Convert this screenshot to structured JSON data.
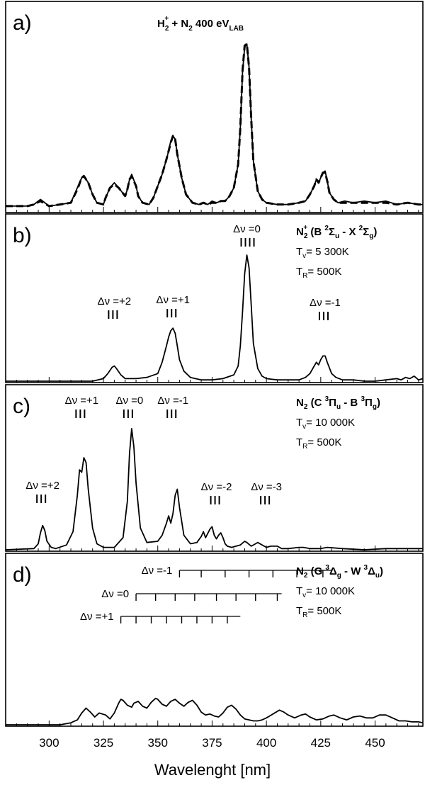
{
  "chart_data": {
    "type": "line",
    "xlabel": "Wavelenght [nm]",
    "xlim": [
      280,
      472
    ],
    "x_ticks": [
      "300",
      "325",
      "350",
      "375",
      "400",
      "425",
      "450"
    ],
    "panels": [
      {
        "letter": "a)",
        "header": {
          "pre": "H",
          "sub": "2",
          "sup": "+",
          "mid": " + N",
          "sub2": "2",
          "post": "   400 eV",
          "sub3": "LAB"
        },
        "ylim": [
          0,
          1.05
        ],
        "series": [
          {
            "style": "solid",
            "x": [
              280,
              290,
              293,
              296,
              300,
              305,
              310,
              313,
              315,
              316,
              318,
              320,
              322,
              325,
              326,
              328,
              330,
              332,
              335,
              336,
              337,
              338,
              340,
              341,
              343,
              346,
              348,
              350,
              352,
              354,
              355,
              356,
              357,
              358,
              359,
              361,
              363,
              366,
              369,
              371,
              373,
              375,
              377,
              379,
              381,
              383,
              385,
              387,
              388,
              389,
              390,
              391,
              392,
              393,
              394,
              396,
              398,
              400,
              405,
              410,
              415,
              418,
              420,
              422,
              423,
              424,
              425,
              426,
              427,
              428,
              429,
              431,
              433,
              436,
              440,
              445,
              450,
              455,
              460,
              465,
              470,
              472
            ],
            "y": [
              0.03,
              0.03,
              0.04,
              0.07,
              0.03,
              0.04,
              0.05,
              0.14,
              0.2,
              0.21,
              0.17,
              0.1,
              0.05,
              0.04,
              0.08,
              0.14,
              0.17,
              0.14,
              0.09,
              0.13,
              0.19,
              0.22,
              0.15,
              0.09,
              0.05,
              0.04,
              0.08,
              0.15,
              0.22,
              0.31,
              0.36,
              0.42,
              0.45,
              0.43,
              0.34,
              0.2,
              0.1,
              0.05,
              0.04,
              0.05,
              0.04,
              0.06,
              0.05,
              0.06,
              0.06,
              0.09,
              0.14,
              0.28,
              0.5,
              0.83,
              0.98,
              1.0,
              0.86,
              0.55,
              0.3,
              0.12,
              0.07,
              0.05,
              0.04,
              0.04,
              0.05,
              0.06,
              0.1,
              0.15,
              0.19,
              0.17,
              0.2,
              0.23,
              0.24,
              0.18,
              0.11,
              0.07,
              0.05,
              0.06,
              0.05,
              0.06,
              0.05,
              0.06,
              0.04,
              0.05,
              0.04,
              0.04
            ]
          },
          {
            "style": "dashed",
            "x": [
              280,
              290,
              293,
              296,
              300,
              305,
              310,
              313,
              315,
              316,
              318,
              320,
              322,
              325,
              326,
              328,
              330,
              332,
              335,
              336,
              337,
              338,
              340,
              341,
              343,
              346,
              348,
              350,
              352,
              354,
              355,
              356,
              357,
              358,
              359,
              361,
              363,
              366,
              369,
              371,
              373,
              375,
              377,
              379,
              381,
              383,
              385,
              387,
              388,
              389,
              390,
              391,
              392,
              393,
              394,
              396,
              398,
              400,
              405,
              410,
              415,
              418,
              420,
              422,
              423,
              424,
              425,
              426,
              427,
              428,
              429,
              431,
              433,
              436,
              440,
              445,
              450,
              455,
              460,
              465,
              470,
              472
            ],
            "y": [
              0.03,
              0.03,
              0.04,
              0.06,
              0.03,
              0.04,
              0.05,
              0.13,
              0.2,
              0.21,
              0.17,
              0.1,
              0.05,
              0.04,
              0.08,
              0.14,
              0.16,
              0.14,
              0.09,
              0.13,
              0.19,
              0.21,
              0.15,
              0.09,
              0.05,
              0.04,
              0.08,
              0.15,
              0.22,
              0.31,
              0.36,
              0.41,
              0.45,
              0.43,
              0.34,
              0.2,
              0.1,
              0.05,
              0.04,
              0.05,
              0.04,
              0.05,
              0.05,
              0.06,
              0.06,
              0.09,
              0.14,
              0.28,
              0.5,
              0.84,
              0.99,
              1.0,
              0.86,
              0.55,
              0.3,
              0.12,
              0.07,
              0.05,
              0.04,
              0.04,
              0.05,
              0.06,
              0.1,
              0.15,
              0.19,
              0.17,
              0.2,
              0.23,
              0.23,
              0.18,
              0.11,
              0.07,
              0.05,
              0.05,
              0.05,
              0.05,
              0.05,
              0.05,
              0.04,
              0.05,
              0.04,
              0.04
            ]
          }
        ]
      },
      {
        "letter": "b)",
        "header": {
          "l1_main": "N",
          "l1_sub": "2",
          "l1_sup": "+",
          "l1_rest": " (B ",
          "l1_sup2": "2",
          "l1_sig": "Σ",
          "l1_sub_u": "u",
          "l1_mid": " - X ",
          "l1_sup3": "2",
          "l1_sig2": "Σ",
          "l1_sub_g": "g",
          "l1_end": ")",
          "tv": "T",
          "tv_sub": "v",
          "tv_val": "= 5 300K",
          "tr": "T",
          "tr_sub": "R",
          "tr_val": "= 500K"
        },
        "ylim": [
          0,
          1.05
        ],
        "annotations": [
          {
            "label": "Δν =+2",
            "x": 330
          },
          {
            "label": "Δν =+1",
            "x": 357
          },
          {
            "label": "Δν =0",
            "x": 391
          },
          {
            "label": "Δν =-1",
            "x": 427
          }
        ],
        "series": [
          {
            "style": "solid",
            "x": [
              280,
              320,
              325,
              327,
              329,
              330,
              331,
              333,
              335,
              340,
              345,
              350,
              352,
              354,
              355,
              356,
              357,
              358,
              359,
              360,
              362,
              365,
              370,
              375,
              380,
              385,
              387,
              388,
              389,
              390,
              391,
              392,
              393,
              394,
              396,
              398,
              400,
              405,
              410,
              415,
              418,
              420,
              422,
              423,
              424,
              425,
              426,
              427,
              428,
              430,
              432,
              435,
              440,
              445,
              450,
              455,
              460,
              462,
              464,
              466,
              468,
              470,
              472
            ],
            "y": [
              0.0,
              0.0,
              0.02,
              0.06,
              0.11,
              0.12,
              0.1,
              0.05,
              0.02,
              0.02,
              0.03,
              0.06,
              0.15,
              0.28,
              0.35,
              0.4,
              0.42,
              0.38,
              0.28,
              0.17,
              0.08,
              0.03,
              0.01,
              0.01,
              0.02,
              0.05,
              0.12,
              0.28,
              0.55,
              0.85,
              1.0,
              0.9,
              0.6,
              0.3,
              0.1,
              0.04,
              0.02,
              0.01,
              0.01,
              0.01,
              0.03,
              0.06,
              0.12,
              0.15,
              0.13,
              0.17,
              0.2,
              0.2,
              0.15,
              0.06,
              0.03,
              0.01,
              0.01,
              0.0,
              0.0,
              0.01,
              0.02,
              0.01,
              0.03,
              0.02,
              0.04,
              0.01,
              0.02
            ]
          }
        ]
      },
      {
        "letter": "c)",
        "header": {
          "l1_main": "N",
          "l1_sub": "2",
          "l1_rest": " (C ",
          "l1_sup2": "3",
          "l1_pi": "Π",
          "l1_sub_u": "u",
          "l1_mid": " - B ",
          "l1_sup3": "3",
          "l1_pi2": "Π",
          "l1_sub_g": "g",
          "l1_end": ")",
          "tv": "T",
          "tv_sub": "v",
          "tv_val": "= 10 000K",
          "tr": "T",
          "tr_sub": "R",
          "tr_val": "= 500K"
        },
        "ylim": [
          0,
          1.05
        ],
        "annotations": [
          {
            "label": "Δν =+2",
            "x": 297
          },
          {
            "label": "Δν =+1",
            "x": 315
          },
          {
            "label": "Δν =0",
            "x": 337
          },
          {
            "label": "Δν =-1",
            "x": 357
          },
          {
            "label": "Δν =-2",
            "x": 377
          },
          {
            "label": "Δν =-3",
            "x": 400
          }
        ],
        "series": [
          {
            "style": "solid",
            "x": [
              280,
              293,
              295,
              296,
              297,
              298,
              299,
              301,
              303,
              308,
              311,
              313,
              314,
              315,
              316,
              317,
              318,
              320,
              322,
              325,
              330,
              334,
              336,
              337,
              338,
              339,
              340,
              342,
              345,
              350,
              352,
              354,
              355,
              356,
              357,
              358,
              359,
              360,
              362,
              365,
              368,
              370,
              371,
              372,
              374,
              375,
              376,
              377,
              378,
              379,
              380,
              381,
              382,
              384,
              386,
              388,
              390,
              391,
              393,
              395,
              396,
              398,
              400,
              402,
              405,
              407,
              410,
              415,
              417,
              420,
              425,
              428,
              435,
              445,
              455,
              465,
              472
            ],
            "y": [
              0.0,
              0.01,
              0.05,
              0.14,
              0.2,
              0.16,
              0.07,
              0.02,
              0.01,
              0.04,
              0.15,
              0.45,
              0.66,
              0.64,
              0.76,
              0.72,
              0.5,
              0.18,
              0.05,
              0.02,
              0.02,
              0.1,
              0.4,
              0.8,
              1.0,
              0.85,
              0.55,
              0.18,
              0.06,
              0.07,
              0.12,
              0.22,
              0.28,
              0.22,
              0.3,
              0.45,
              0.5,
              0.35,
              0.12,
              0.05,
              0.06,
              0.11,
              0.15,
              0.1,
              0.17,
              0.19,
              0.12,
              0.09,
              0.12,
              0.14,
              0.1,
              0.05,
              0.03,
              0.02,
              0.03,
              0.04,
              0.07,
              0.06,
              0.03,
              0.05,
              0.06,
              0.04,
              0.02,
              0.03,
              0.03,
              0.01,
              0.01,
              0.02,
              0.02,
              0.01,
              0.01,
              0.02,
              0.01,
              0.0,
              0.01,
              0.01,
              0.01
            ]
          }
        ]
      },
      {
        "letter": "d)",
        "header": {
          "l1_main": "N",
          "l1_sub": "2",
          "l1_rest": " (G ",
          "l1_sup2": "3",
          "l1_del": "Δ",
          "l1_sub_u": "g",
          "l1_mid": " - W ",
          "l1_sup3": "3",
          "l1_del2": "Δ",
          "l1_sub_g": "u",
          "l1_end": ")",
          "tv": "T",
          "tv_sub": "v",
          "tv_val": "= 10 000K",
          "tr": "T",
          "tr_sub": "R",
          "tr_val": "= 500K"
        },
        "ylim": [
          0,
          1.05
        ],
        "progressions": [
          {
            "label": "Δν =-1",
            "start": 360,
            "end": 430,
            "ticks": [
              360,
              370,
              381,
              392,
              403,
              414,
              426
            ]
          },
          {
            "label": "Δν =0",
            "start": 340,
            "end": 407,
            "ticks": [
              340,
              349,
              358,
              367,
              377,
              386,
              395,
              405
            ]
          },
          {
            "label": "Δν =+1",
            "start": 333,
            "end": 388,
            "ticks": [
              333,
              340,
              347,
              354,
              361,
              368,
              375,
              382
            ]
          }
        ],
        "series": [
          {
            "style": "solid",
            "x": [
              280,
              305,
              310,
              313,
              315,
              317,
              319,
              321,
              323,
              326,
              328,
              330,
              332,
              333,
              334,
              336,
              338,
              339,
              341,
              343,
              345,
              347,
              349,
              350,
              352,
              354,
              356,
              358,
              360,
              362,
              364,
              366,
              368,
              370,
              372,
              374,
              376,
              378,
              380,
              382,
              384,
              386,
              388,
              390,
              392,
              394,
              396,
              398,
              400,
              403,
              406,
              408,
              410,
              413,
              416,
              418,
              420,
              423,
              426,
              429,
              431,
              434,
              437,
              440,
              443,
              446,
              449,
              452,
              455,
              458,
              461,
              464,
              467,
              470,
              472
            ],
            "y": [
              0.0,
              0.0,
              0.02,
              0.05,
              0.12,
              0.17,
              0.13,
              0.08,
              0.12,
              0.1,
              0.06,
              0.12,
              0.22,
              0.26,
              0.25,
              0.2,
              0.18,
              0.22,
              0.24,
              0.19,
              0.17,
              0.23,
              0.27,
              0.26,
              0.21,
              0.19,
              0.24,
              0.26,
              0.22,
              0.19,
              0.23,
              0.25,
              0.2,
              0.13,
              0.1,
              0.11,
              0.09,
              0.08,
              0.12,
              0.18,
              0.2,
              0.16,
              0.1,
              0.06,
              0.05,
              0.04,
              0.04,
              0.05,
              0.07,
              0.11,
              0.15,
              0.13,
              0.1,
              0.07,
              0.1,
              0.11,
              0.08,
              0.05,
              0.06,
              0.09,
              0.1,
              0.07,
              0.05,
              0.08,
              0.09,
              0.07,
              0.07,
              0.1,
              0.1,
              0.07,
              0.04,
              0.04,
              0.03,
              0.03,
              0.02
            ]
          }
        ]
      }
    ]
  }
}
